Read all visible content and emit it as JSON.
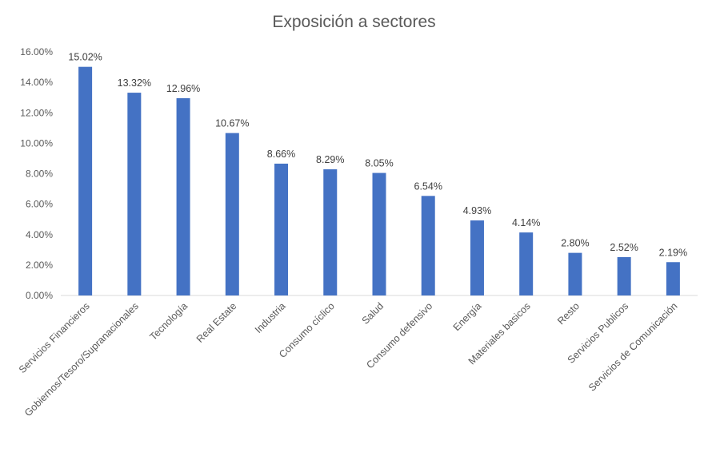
{
  "chart_data": {
    "type": "bar",
    "title": "Exposición a sectores",
    "xlabel": "",
    "ylabel": "",
    "ylim": [
      0,
      16
    ],
    "yticks": [
      "0.00%",
      "2.00%",
      "4.00%",
      "6.00%",
      "8.00%",
      "10.00%",
      "12.00%",
      "14.00%",
      "16.00%"
    ],
    "ytick_values": [
      0,
      2,
      4,
      6,
      8,
      10,
      12,
      14,
      16
    ],
    "grid": false,
    "legend": "none",
    "bar_color": "#4472C4",
    "categories": [
      "Servicios Financieros",
      "Gobiernos/Tesoro/Supranacionales",
      "Tecnología",
      "Real Estate",
      "Industria",
      "Consumo cíclico",
      "Salud",
      "Consumo defensivo",
      "Energía",
      "Materiales basicos",
      "Resto",
      "Servicios Publicos",
      "Servicios de Comunicación"
    ],
    "values": [
      15.02,
      13.32,
      12.96,
      10.67,
      8.66,
      8.29,
      8.05,
      6.54,
      4.93,
      4.14,
      2.8,
      2.52,
      2.19
    ],
    "data_labels": [
      "15.02%",
      "13.32%",
      "12.96%",
      "10.67%",
      "8.66%",
      "8.29%",
      "8.05%",
      "6.54%",
      "4.93%",
      "4.14%",
      "2.80%",
      "2.52%",
      "2.19%"
    ]
  }
}
